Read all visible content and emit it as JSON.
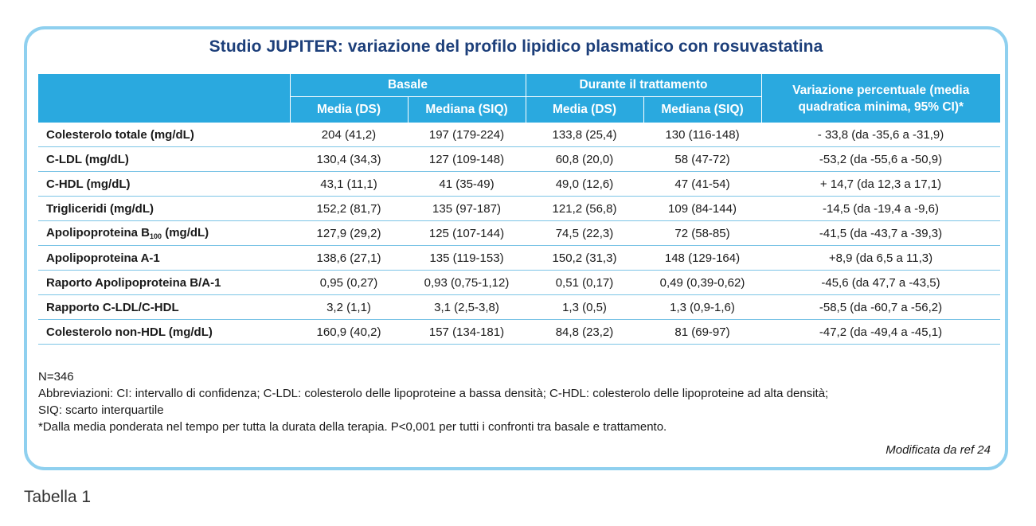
{
  "title": "Studio JUPITER: variazione del profilo lipidico plasmatico con rosuvastatina",
  "header": {
    "group_baseline": "Basale",
    "group_treatment": "Durante il trattamento",
    "change": "Variazione percentuale (media quadratica minima, 95% CI)*",
    "mean_sd": "Media (DS)",
    "median_iqr": "Mediana (SIQ)"
  },
  "rows": [
    {
      "label": "Colesterolo totale (mg/dL)",
      "b_mean": "204 (41,2)",
      "b_median": "197 (179-224)",
      "t_mean": "133,8 (25,4)",
      "t_median": "130 (116-148)",
      "change": "- 33,8 (da -35,6 a -31,9)"
    },
    {
      "label": "C-LDL (mg/dL)",
      "b_mean": "130,4 (34,3)",
      "b_median": "127 (109-148)",
      "t_mean": "60,8 (20,0)",
      "t_median": "58 (47-72)",
      "change": "-53,2 (da -55,6 a -50,9)"
    },
    {
      "label": "C-HDL (mg/dL)",
      "b_mean": "43,1 (11,1)",
      "b_median": "41 (35-49)",
      "t_mean": "49,0 (12,6)",
      "t_median": "47 (41-54)",
      "change": "+ 14,7 (da 12,3 a 17,1)"
    },
    {
      "label": "Trigliceridi (mg/dL)",
      "b_mean": "152,2 (81,7)",
      "b_median": "135 (97-187)",
      "t_mean": "121,2 (56,8)",
      "t_median": "109 (84-144)",
      "change": "-14,5 (da -19,4 a -9,6)"
    },
    {
      "label_pre": "Apolipoproteina B",
      "label_sub": "100",
      "label_post": " (mg/dL)",
      "b_mean": "127,9 (29,2)",
      "b_median": "125 (107-144)",
      "t_mean": "74,5 (22,3)",
      "t_median": "72 (58-85)",
      "change": "-41,5 (da -43,7 a -39,3)"
    },
    {
      "label": "Apolipoproteina A-1",
      "b_mean": "138,6 (27,1)",
      "b_median": "135 (119-153)",
      "t_mean": "150,2 (31,3)",
      "t_median": "148 (129-164)",
      "change": "+8,9 (da 6,5 a 11,3)"
    },
    {
      "label": "Raporto Apolipoproteina B/A-1",
      "b_mean": "0,95 (0,27)",
      "b_median": "0,93 (0,75-1,12)",
      "t_mean": "0,51 (0,17)",
      "t_median": "0,49 (0,39-0,62)",
      "change": "-45,6 (da 47,7 a -43,5)"
    },
    {
      "label": "Rapporto C-LDL/C-HDL",
      "b_mean": "3,2 (1,1)",
      "b_median": "3,1 (2,5-3,8)",
      "t_mean": "1,3 (0,5)",
      "t_median": "1,3 (0,9-1,6)",
      "change": "-58,5 (da -60,7 a -56,2)"
    },
    {
      "label": "Colesterolo non-HDL (mg/dL)",
      "b_mean": "160,9 (40,2)",
      "b_median": "157 (134-181)",
      "t_mean": "84,8 (23,2)",
      "t_median": "81 (69-97)",
      "change": "-47,2 (da -49,4 a -45,1)"
    }
  ],
  "notes": {
    "n": "N=346",
    "abbr_1": "Abbreviazioni: CI: intervallo di confidenza; C-LDL: colesterolo delle lipoproteine a bassa densità; C-HDL: colesterolo delle lipoproteine ad alta densità;",
    "abbr_2": "SIQ: scarto interquartile",
    "footnote": "*Dalla media ponderata nel tempo per tutta la durata della terapia. P<0,001 per tutti i confronti tra basale e trattamento."
  },
  "source": "Modificata da ref 24",
  "caption": "Tabella 1",
  "colors": {
    "header_bg": "#2aa9df",
    "frame": "#8fd0ef",
    "title": "#1d3f7a",
    "row_line": "#7cc4e6"
  }
}
